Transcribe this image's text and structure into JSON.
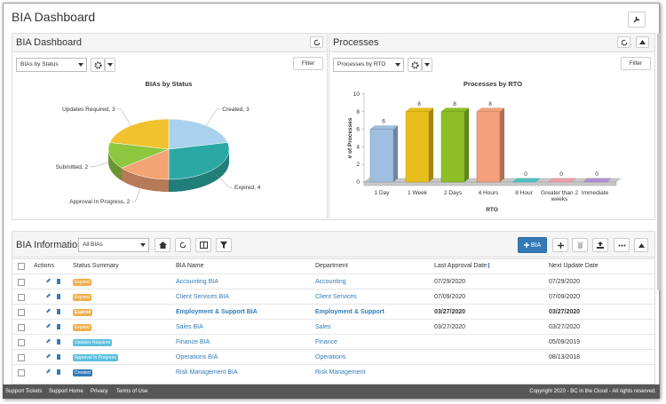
{
  "header": {
    "title": "BIA Dashboard"
  },
  "panels": [
    {
      "title": "BIA Dashboard",
      "selector": "BIAs by Status",
      "filter": "Filter",
      "chart": {
        "type": "pie",
        "title": "BIAs by Status",
        "values": [
          3,
          4,
          2,
          2,
          3
        ],
        "value_labels": [
          "Created, 3",
          "Expired, 4",
          "Approval In Progress, 2",
          "Submitted, 2",
          "Updates Required, 3"
        ],
        "colors": [
          "#a9d2ee",
          "#2aa8a4",
          "#f4a373",
          "#8dc63f",
          "#f2c12e"
        ]
      }
    },
    {
      "title": "Processes",
      "selector": "Processes by RTO",
      "filter": "Filter",
      "chart": {
        "type": "bar",
        "title": "Processes by RTO",
        "x_label": "RTO",
        "y_label": "# of Processes",
        "categories": [
          "1 Day",
          "1 Week",
          "2 Days",
          "4 Hours",
          "8 Hour",
          "Greater than 2 weeks",
          "Immediate"
        ],
        "values": [
          6,
          8,
          8,
          8,
          0,
          0,
          0
        ],
        "colors": [
          "#9fbfe0",
          "#e8bf1a",
          "#8cbf26",
          "#f4a07a",
          "#4ec3c3",
          "#f0a0a8",
          "#b48fd6"
        ],
        "ylim": [
          0,
          10
        ],
        "yticks": [
          0,
          2,
          4,
          6,
          8,
          10
        ]
      }
    }
  ],
  "info": {
    "title": "BIA Information",
    "selector": "All BIAs",
    "add_button": "BIA",
    "columns": [
      "Actions",
      "Status Summary",
      "BIA Name",
      "Department",
      "Last Approval Date",
      "Next Update Date"
    ],
    "rows": [
      {
        "status": "Expired",
        "status_color": "#f0ad4e",
        "name": "Accounting BIA",
        "department": "Accounting",
        "last_approval": "07/29/2020",
        "next_update": "07/29/2020"
      },
      {
        "status": "Expired",
        "status_color": "#f0ad4e",
        "name": "Client Services BIA",
        "department": "Client Services",
        "last_approval": "07/09/2020",
        "next_update": "07/09/2020"
      },
      {
        "status": "Expired",
        "status_color": "#f0ad4e",
        "name": "Employment & Support BIA",
        "department": "Employment & Support",
        "last_approval": "03/27/2020",
        "next_update": "03/27/2020"
      },
      {
        "status": "Expired",
        "status_color": "#f0ad4e",
        "name": "Sales BIA",
        "department": "Sales",
        "last_approval": "03/27/2020",
        "next_update": "03/27/2020"
      },
      {
        "status": "Updates Required",
        "status_color": "#5bc0de",
        "name": "Finance BIA",
        "department": "Finance",
        "next_update": "05/09/2019"
      },
      {
        "status": "Approval In Progress",
        "status_color": "#5bc0de",
        "name": "Operations BIA",
        "department": "Operations",
        "next_update": "08/13/2018"
      },
      {
        "status": "Created",
        "status_color": "#337ab7",
        "name": "Risk Management BIA",
        "department": "Risk Management"
      }
    ]
  },
  "footer": {
    "links": [
      "Support Tickets",
      "Support Home",
      "Privacy",
      "Terms of Use"
    ],
    "copyright": "Copyright 2020 - BC in the Cloud - All rights reserved."
  }
}
